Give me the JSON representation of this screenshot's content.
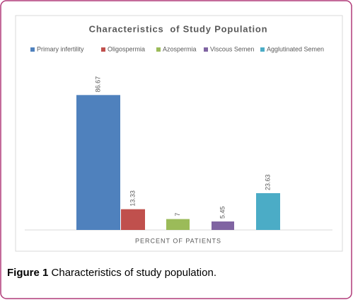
{
  "chart_data": {
    "type": "bar",
    "title": "Characteristics  of Study Population",
    "categories": [
      "PERCENT OF PATIENTS"
    ],
    "series": [
      {
        "name": "Primary infertility",
        "color": "#4f81bd",
        "values": [
          86.67
        ]
      },
      {
        "name": "Oligospermia",
        "color": "#c0504d",
        "values": [
          13.33
        ]
      },
      {
        "name": "Azospermia",
        "color": "#9bbb59",
        "values": [
          7
        ]
      },
      {
        "name": "Viscous Semen",
        "color": "#8064a2",
        "values": [
          5.45
        ]
      },
      {
        "name": "Agglutinated Semen",
        "color": "#4bacc6",
        "values": [
          23.63
        ]
      }
    ],
    "ylim": [
      0,
      100
    ],
    "legend": "top"
  },
  "caption": {
    "label": "Figure 1",
    "text": "Characteristics of study population."
  }
}
